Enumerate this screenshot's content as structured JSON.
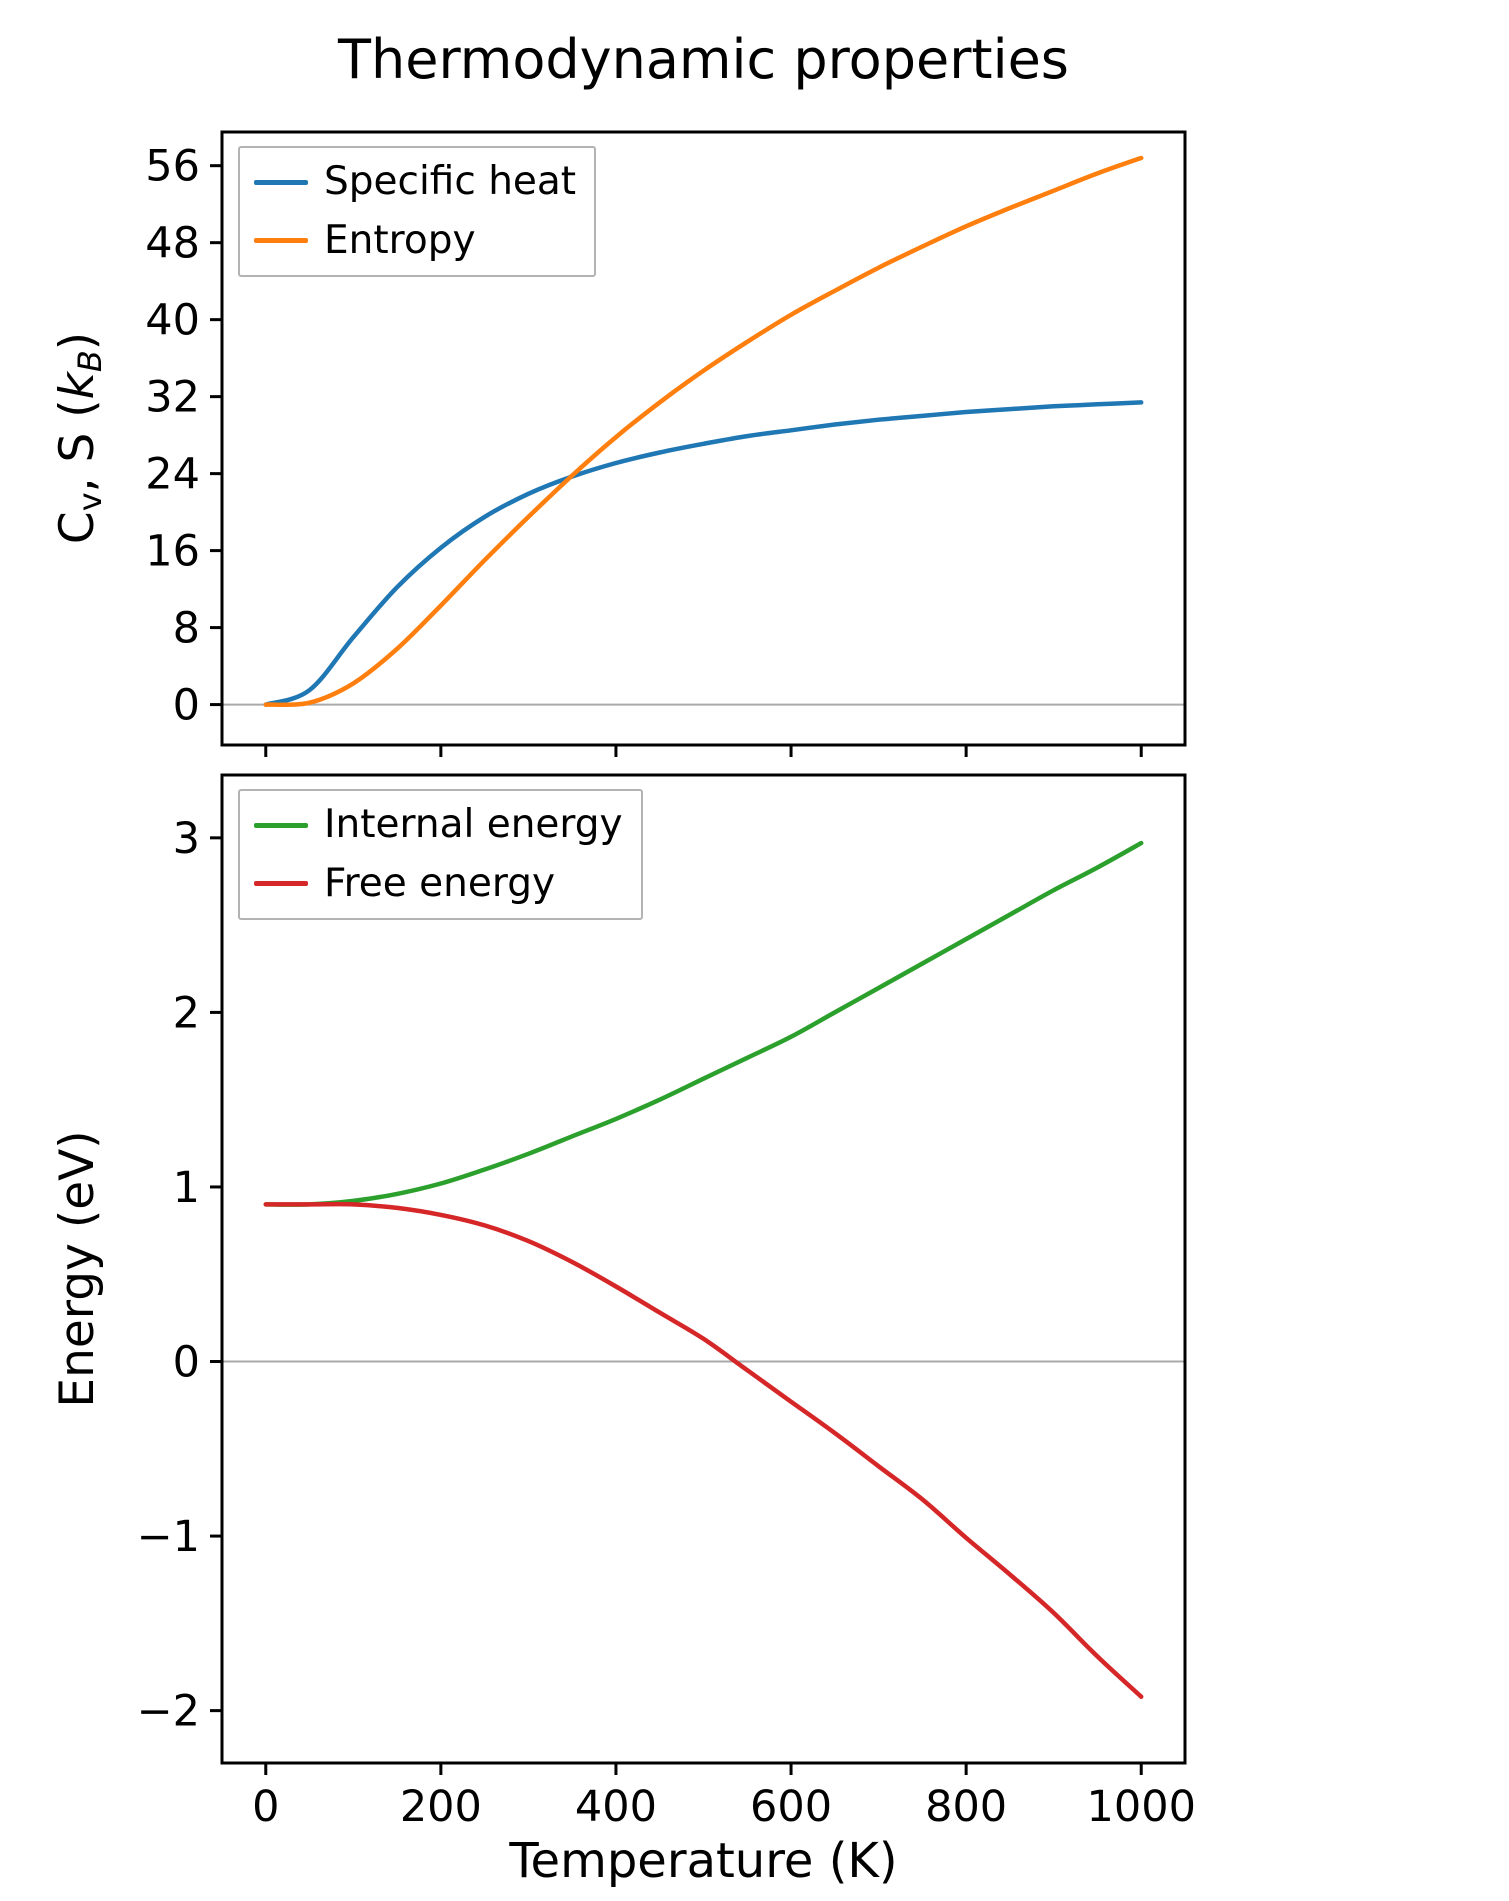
{
  "title": "Thermodynamic properties",
  "xlabel": "Temperature (K)",
  "top_ylabel": {
    "c": "C",
    "v": "v",
    "mid": ", S (",
    "k": "k",
    "b": "B",
    "close": ")"
  },
  "bottom_ylabel": "Energy (eV)",
  "colors": {
    "specific_heat": "#1f77b4",
    "entropy": "#ff7f0e",
    "internal_energy": "#2ca02c",
    "free_energy": "#d62728",
    "zero_line": "#aaaaaa",
    "spine": "#000000",
    "legend_border": "#b3b3b3"
  },
  "chart_data": [
    {
      "type": "line",
      "panel": "top",
      "title": "Thermodynamic properties",
      "xlabel": "Temperature (K)",
      "ylabel": "C_v, S (k_B)",
      "x": [
        0,
        50,
        100,
        150,
        200,
        250,
        300,
        350,
        400,
        450,
        500,
        550,
        600,
        650,
        700,
        750,
        800,
        850,
        900,
        950,
        1000
      ],
      "series": [
        {
          "name": "Specific heat",
          "color": "#1f77b4",
          "values": [
            0,
            1.5,
            7.0,
            12.2,
            16.3,
            19.5,
            21.9,
            23.7,
            25.1,
            26.2,
            27.1,
            27.9,
            28.5,
            29.1,
            29.6,
            30.0,
            30.4,
            30.7,
            31.0,
            31.2,
            31.4
          ]
        },
        {
          "name": "Entropy",
          "color": "#ff7f0e",
          "values": [
            0,
            0.2,
            2.2,
            5.8,
            10.3,
            15.0,
            19.5,
            23.8,
            27.8,
            31.4,
            34.7,
            37.7,
            40.5,
            43.0,
            45.4,
            47.6,
            49.7,
            51.6,
            53.4,
            55.2,
            56.8
          ]
        }
      ],
      "xlim": [
        -50,
        1050
      ],
      "ylim": [
        -4.2,
        59.5
      ],
      "xticks": [
        0,
        200,
        400,
        600,
        800,
        1000
      ],
      "yticks": [
        0,
        8,
        16,
        24,
        32,
        40,
        48,
        56
      ],
      "x_tick_labels_visible": false,
      "zero_line": true,
      "grid": false,
      "legend_position": "upper left"
    },
    {
      "type": "line",
      "panel": "bottom",
      "title": "",
      "xlabel": "Temperature (K)",
      "ylabel": "Energy (eV)",
      "x": [
        0,
        50,
        100,
        150,
        200,
        250,
        300,
        350,
        400,
        450,
        500,
        550,
        600,
        650,
        700,
        750,
        800,
        850,
        900,
        950,
        1000
      ],
      "series": [
        {
          "name": "Internal energy",
          "color": "#2ca02c",
          "values": [
            0.9,
            0.9,
            0.92,
            0.96,
            1.02,
            1.1,
            1.19,
            1.29,
            1.39,
            1.5,
            1.62,
            1.74,
            1.86,
            2.0,
            2.14,
            2.28,
            2.42,
            2.56,
            2.7,
            2.83,
            2.97
          ]
        },
        {
          "name": "Free energy",
          "color": "#d62728",
          "values": [
            0.9,
            0.9,
            0.9,
            0.88,
            0.84,
            0.78,
            0.69,
            0.57,
            0.43,
            0.28,
            0.13,
            -0.05,
            -0.23,
            -0.41,
            -0.6,
            -0.79,
            -1.01,
            -1.22,
            -1.44,
            -1.69,
            -1.92
          ]
        }
      ],
      "xlim": [
        -50,
        1050
      ],
      "ylim": [
        -2.3,
        3.36
      ],
      "xticks": [
        0,
        200,
        400,
        600,
        800,
        1000
      ],
      "yticks": [
        -2,
        -1,
        0,
        1,
        2,
        3
      ],
      "x_tick_labels_visible": true,
      "zero_line": true,
      "grid": false,
      "legend_position": "upper left"
    }
  ]
}
